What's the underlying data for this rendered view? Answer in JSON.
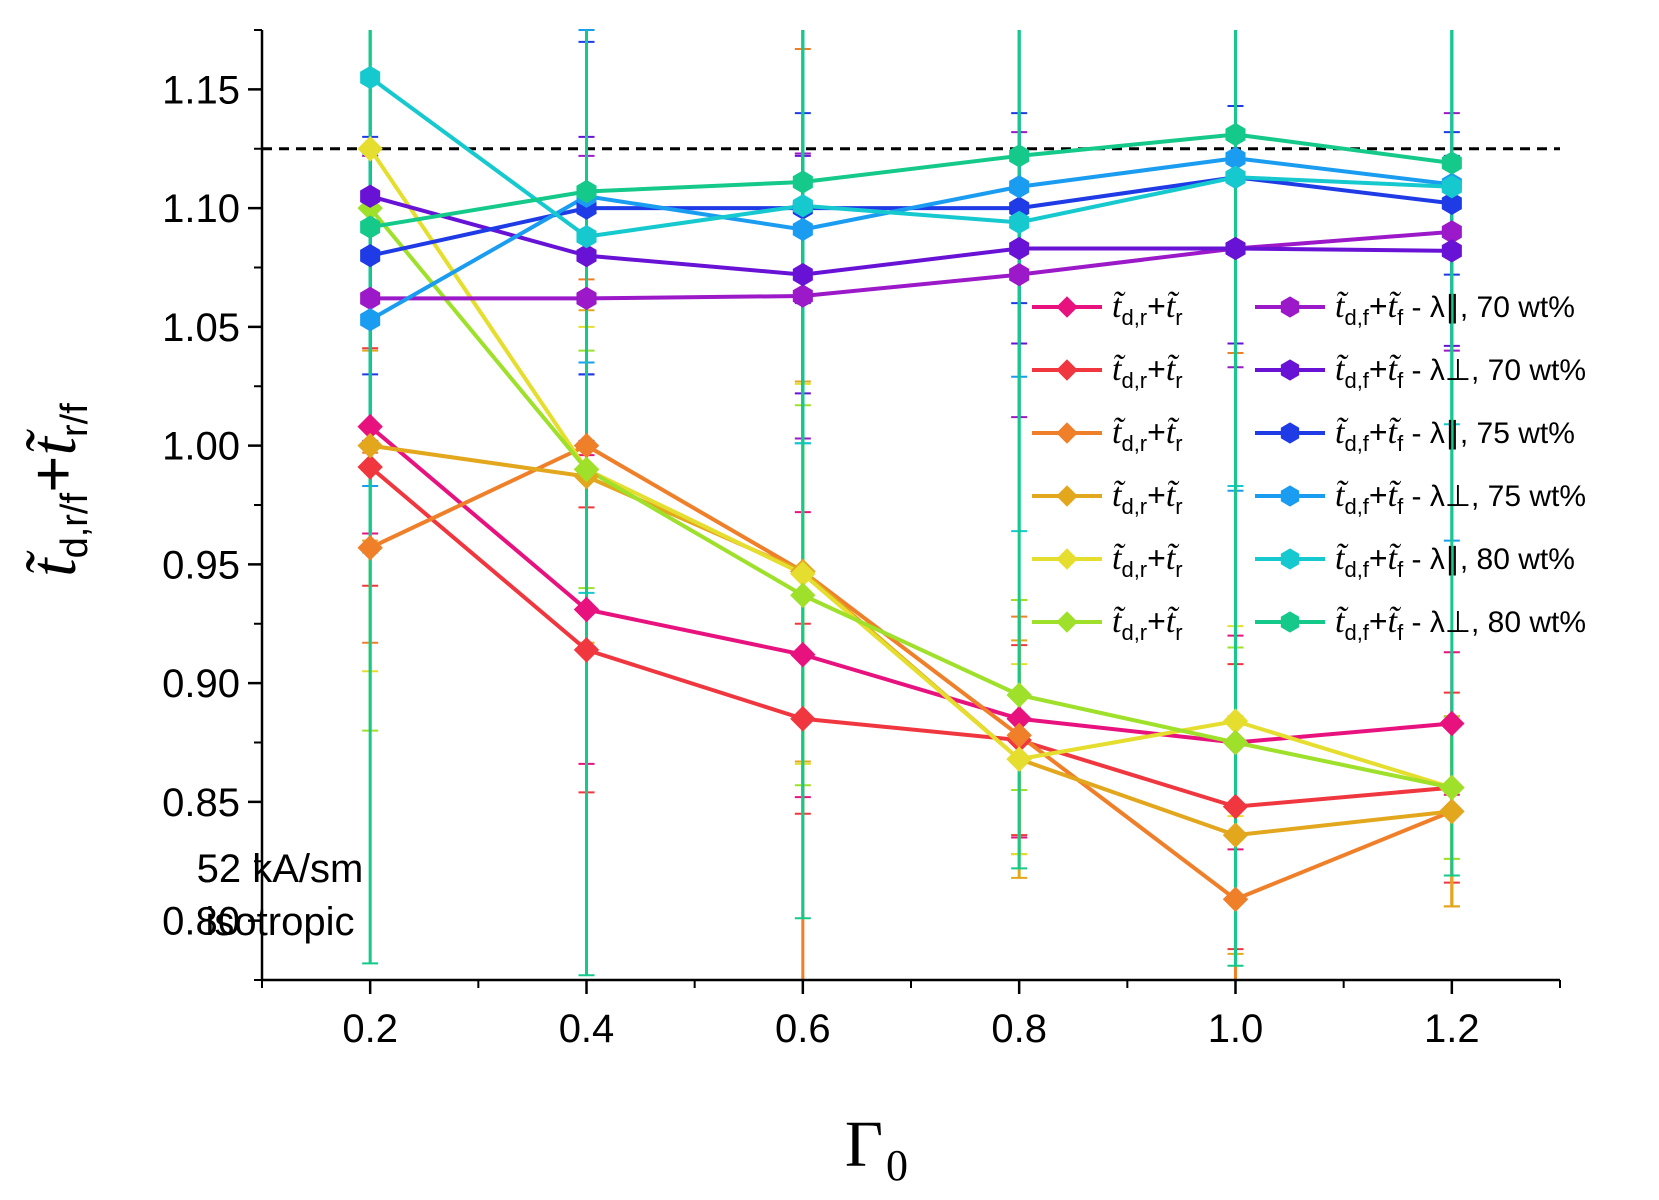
{
  "chart_data": {
    "type": "line",
    "xlabel": "Γ",
    "xlabel_sub": "0",
    "ylabel_main": "t̃",
    "ylabel_sub": "d,r/f",
    "ylabel_plus": "+",
    "ylabel_main2": "t̃",
    "ylabel_sub2": "r/f",
    "x_ticks": [
      "0.2",
      "0.4",
      "0.6",
      "0.8",
      "1.0",
      "1.2"
    ],
    "y_ticks": [
      "0.80",
      "0.85",
      "0.90",
      "0.95",
      "1.00",
      "1.05",
      "1.10",
      "1.15"
    ],
    "xlim": [
      0.1,
      1.3
    ],
    "ylim": [
      0.775,
      1.175
    ],
    "reference_line": 1.125,
    "annotation": [
      "52 kA/sm",
      "isotropic"
    ],
    "x": [
      0.2,
      0.4,
      0.6,
      0.8,
      1.0,
      1.2
    ],
    "series": [
      {
        "name": "t̃d,r+t̃r",
        "legend_main": "t̃",
        "legend_sub": "d,r",
        "legend_plus": "+",
        "legend_main2": "t̃",
        "legend_sub2": "r",
        "legend_tail": "",
        "marker": "diamond",
        "color": "#e8127f",
        "values": [
          1.008,
          0.931,
          0.912,
          0.885,
          0.875,
          0.883
        ],
        "err": [
          0.045,
          0.065,
          0.06,
          0.05,
          0.045,
          0.03
        ]
      },
      {
        "name": "t̃d,r+t̃r",
        "legend_main": "t̃",
        "legend_sub": "d,r",
        "legend_plus": "+",
        "legend_main2": "t̃",
        "legend_sub2": "r",
        "legend_tail": "",
        "marker": "diamond",
        "color": "#f0373f",
        "values": [
          0.991,
          0.914,
          0.885,
          0.876,
          0.848,
          0.856
        ],
        "err": [
          0.05,
          0.06,
          0.04,
          0.04,
          0.06,
          0.04
        ]
      },
      {
        "name": "t̃d,r+t̃r",
        "legend_main": "t̃",
        "legend_sub": "d,r",
        "legend_plus": "+",
        "legend_main2": "t̃",
        "legend_sub2": "r",
        "legend_tail": "",
        "marker": "diamond",
        "color": "#f07f2a",
        "values": [
          0.957,
          1.0,
          0.947,
          0.878,
          0.809,
          0.846
        ],
        "err": [
          0.04,
          0.07,
          0.22,
          0.05,
          0.23,
          0.04
        ]
      },
      {
        "name": "t̃d,r+t̃r",
        "legend_main": "t̃",
        "legend_sub": "d,r",
        "legend_plus": "+",
        "legend_main2": "t̃",
        "legend_sub2": "r",
        "legend_tail": "",
        "marker": "diamond",
        "color": "#e3a71e",
        "values": [
          1.0,
          0.987,
          0.947,
          0.868,
          0.836,
          0.846
        ],
        "err": [
          0.04,
          0.07,
          0.08,
          0.05,
          0.05,
          0.04
        ]
      },
      {
        "name": "t̃d,r+t̃r",
        "legend_main": "t̃",
        "legend_sub": "d,r",
        "legend_plus": "+",
        "legend_main2": "t̃",
        "legend_sub2": "r",
        "legend_tail": "",
        "marker": "diamond",
        "color": "#e6de2e",
        "values": [
          1.125,
          0.99,
          0.946,
          0.868,
          0.884,
          0.856
        ],
        "err": [
          0.22,
          0.06,
          0.08,
          0.04,
          0.04,
          0.03
        ]
      },
      {
        "name": "t̃d,r+t̃r",
        "legend_main": "t̃",
        "legend_sub": "d,r",
        "legend_plus": "+",
        "legend_main2": "t̃",
        "legend_sub2": "r",
        "legend_tail": "",
        "marker": "diamond",
        "color": "#9ee02a",
        "values": [
          1.1,
          0.99,
          0.937,
          0.895,
          0.875,
          0.856
        ],
        "err": [
          0.22,
          0.05,
          0.08,
          0.04,
          0.04,
          0.03
        ]
      },
      {
        "name": "t̃d,f+t̃f - λ∥, 70 wt%",
        "legend_main": "t̃",
        "legend_sub": "d,f",
        "legend_plus": "+",
        "legend_main2": "t̃",
        "legend_sub2": "f",
        "legend_tail": " - λ∥, 70 wt%",
        "marker": "hexagon",
        "color": "#9b19c8",
        "values": [
          1.062,
          1.062,
          1.063,
          1.072,
          1.083,
          1.09
        ],
        "err": [
          0.06,
          0.06,
          0.06,
          0.06,
          0.05,
          0.05
        ]
      },
      {
        "name": "t̃d,f+t̃f - λ⊥, 70 wt%",
        "legend_main": "t̃",
        "legend_sub": "d,f",
        "legend_plus": "+",
        "legend_main2": "t̃",
        "legend_sub2": "f",
        "legend_tail": " - λ⊥, 70 wt%",
        "marker": "hexagon",
        "color": "#6812d6",
        "values": [
          1.105,
          1.08,
          1.072,
          1.083,
          1.083,
          1.082
        ],
        "err": [
          0.05,
          0.05,
          0.05,
          0.04,
          0.04,
          0.04
        ]
      },
      {
        "name": "t̃d,f+t̃f - λ∥, 75 wt%",
        "legend_main": "t̃",
        "legend_sub": "d,f",
        "legend_plus": "+",
        "legend_main2": "t̃",
        "legend_sub2": "f",
        "legend_tail": " - λ∥, 75 wt%",
        "marker": "hexagon",
        "color": "#1f3be6",
        "values": [
          1.08,
          1.1,
          1.1,
          1.1,
          1.113,
          1.102
        ],
        "err": [
          0.05,
          0.07,
          0.04,
          0.04,
          0.03,
          0.03
        ]
      },
      {
        "name": "t̃d,f+t̃f - λ⊥, 75 wt%",
        "legend_main": "t̃",
        "legend_sub": "d,f",
        "legend_plus": "+",
        "legend_main2": "t̃",
        "legend_sub2": "f",
        "legend_tail": " - λ⊥, 75 wt%",
        "marker": "hexagon",
        "color": "#1a9cf0",
        "values": [
          1.053,
          1.105,
          1.091,
          1.109,
          1.121,
          1.11
        ],
        "err": [
          0.07,
          0.07,
          0.09,
          0.08,
          0.14,
          0.15
        ]
      },
      {
        "name": "t̃d,f+t̃f - λ∥, 80 wt%",
        "legend_main": "t̃",
        "legend_sub": "d,f",
        "legend_plus": "+",
        "legend_main2": "t̃",
        "legend_sub2": "f",
        "legend_tail": " - λ∥, 80 wt%",
        "marker": "hexagon",
        "color": "#16c9cf",
        "values": [
          1.155,
          1.088,
          1.101,
          1.094,
          1.113,
          1.109
        ],
        "err": [
          0.2,
          0.15,
          0.1,
          0.13,
          0.13,
          0.1
        ]
      },
      {
        "name": "t̃d,f+t̃f - λ⊥, 80 wt%",
        "legend_main": "t̃",
        "legend_sub": "d,f",
        "legend_plus": "+",
        "legend_main2": "t̃",
        "legend_sub2": "f",
        "legend_tail": " - λ⊥, 80 wt%",
        "marker": "hexagon",
        "color": "#14c98a",
        "values": [
          1.092,
          1.107,
          1.111,
          1.122,
          1.131,
          1.119
        ],
        "err": [
          0.31,
          0.33,
          0.31,
          0.3,
          0.35,
          0.3
        ]
      }
    ],
    "grid": false,
    "legend_position": "center-right"
  }
}
